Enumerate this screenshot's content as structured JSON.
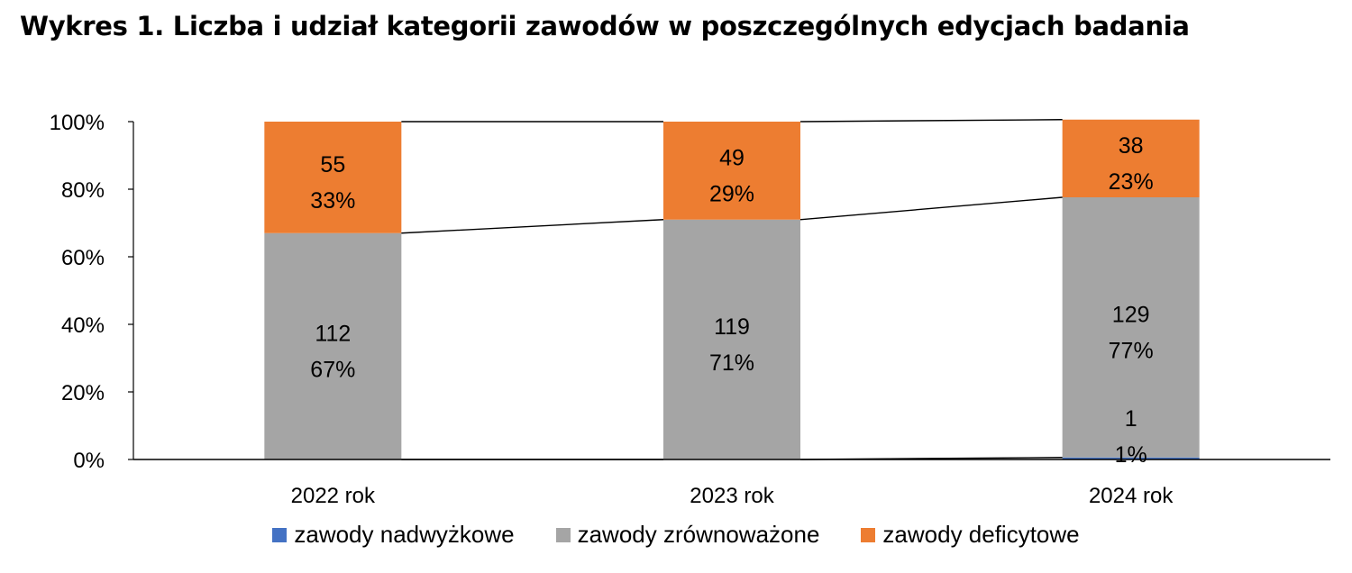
{
  "title": "Wykres 1. Liczba i udział kategorii zawodów w poszczególnych edycjach badania",
  "colors": {
    "nadwyzkowe": "#4472c4",
    "zrownowazone": "#a5a5a5",
    "deficytowe": "#ed7d31",
    "line": "#000000"
  },
  "chart_data": {
    "type": "bar",
    "stacked": true,
    "percent": true,
    "categories": [
      "2022 rok",
      "2023 rok",
      "2024 rok"
    ],
    "ylim": [
      0,
      100
    ],
    "yticks": [
      "0%",
      "20%",
      "40%",
      "60%",
      "80%",
      "100%"
    ],
    "series_lines": true,
    "legend_position": "bottom",
    "series": [
      {
        "name": "zawody nadwyżkowe",
        "color": "#4472c4",
        "counts": [
          0,
          0,
          1
        ],
        "percents": [
          0,
          0,
          0.6
        ],
        "labels": [
          null,
          null,
          {
            "count": "1",
            "pct": "1%"
          }
        ]
      },
      {
        "name": "zawody zrównoważone",
        "color": "#a5a5a5",
        "counts": [
          112,
          119,
          129
        ],
        "percents": [
          67,
          71,
          77
        ],
        "labels": [
          {
            "count": "112",
            "pct": "67%"
          },
          {
            "count": "119",
            "pct": "71%"
          },
          {
            "count": "129",
            "pct": "77%"
          }
        ]
      },
      {
        "name": "zawody deficytowe",
        "color": "#ed7d31",
        "counts": [
          55,
          49,
          38
        ],
        "percents": [
          33,
          29,
          23
        ],
        "labels": [
          {
            "count": "55",
            "pct": "33%"
          },
          {
            "count": "49",
            "pct": "29%"
          },
          {
            "count": "38",
            "pct": "23%"
          }
        ]
      }
    ]
  }
}
